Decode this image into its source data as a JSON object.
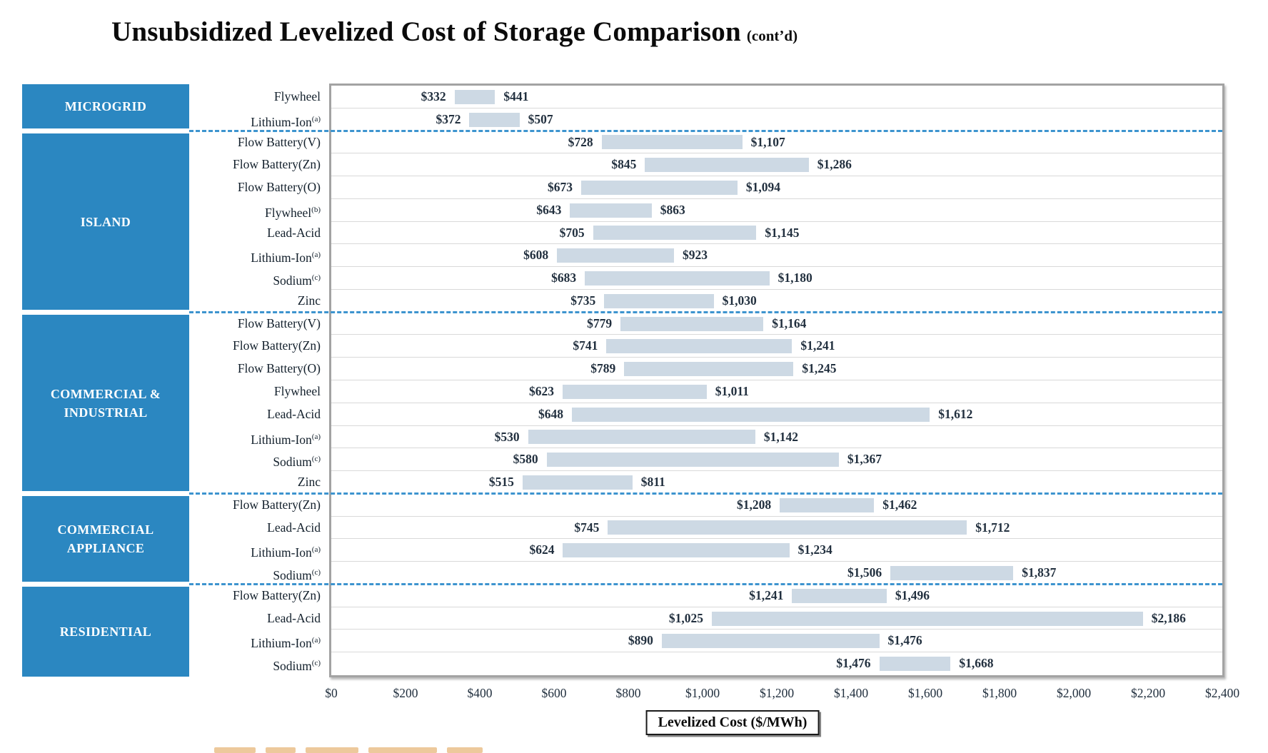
{
  "title": {
    "main": "Unsubsidized Levelized Cost of Storage Comparison",
    "suffix": "(cont’d)"
  },
  "axis": {
    "label": "Levelized Cost ($/MWh)",
    "ticks": [
      "$0",
      "$200",
      "$400",
      "$600",
      "$800",
      "$1,000",
      "$1,200",
      "$1,400",
      "$1,600",
      "$1,800",
      "$2,000",
      "$2,200",
      "$2,400"
    ],
    "min": 0,
    "max": 2400
  },
  "colors": {
    "sidebar_blue": "#2b87c1",
    "bar_fill": "#cdd9e4",
    "separator_dash": "#3d94cf",
    "row_line": "#d9d9d9",
    "plot_border": "#a3a3a3",
    "value_text": "#22303f"
  },
  "chart_data": {
    "type": "bar",
    "subtype": "horizontal-range",
    "title": "Unsubsidized Levelized Cost of Storage Comparison (cont’d)",
    "xlabel": "Levelized Cost ($/MWh)",
    "xlim": [
      0,
      2400
    ],
    "x_tick_step": 200,
    "grid": false,
    "legend": "none",
    "groups": [
      {
        "name": "MICROGRID",
        "rows": [
          {
            "label": "Flywheel",
            "sup": "",
            "low": 332,
            "high": 441,
            "low_label": "$332",
            "high_label": "$441"
          },
          {
            "label": "Lithium-Ion",
            "sup": "(a)",
            "low": 372,
            "high": 507,
            "low_label": "$372",
            "high_label": "$507"
          }
        ]
      },
      {
        "name": "ISLAND",
        "rows": [
          {
            "label": "Flow Battery(V)",
            "sup": "",
            "low": 728,
            "high": 1107,
            "low_label": "$728",
            "high_label": "$1,107"
          },
          {
            "label": "Flow Battery(Zn)",
            "sup": "",
            "low": 845,
            "high": 1286,
            "low_label": "$845",
            "high_label": "$1,286"
          },
          {
            "label": "Flow Battery(O)",
            "sup": "",
            "low": 673,
            "high": 1094,
            "low_label": "$673",
            "high_label": "$1,094"
          },
          {
            "label": "Flywheel",
            "sup": "(b)",
            "low": 643,
            "high": 863,
            "low_label": "$643",
            "high_label": "$863"
          },
          {
            "label": "Lead-Acid",
            "sup": "",
            "low": 705,
            "high": 1145,
            "low_label": "$705",
            "high_label": "$1,145"
          },
          {
            "label": "Lithium-Ion",
            "sup": "(a)",
            "low": 608,
            "high": 923,
            "low_label": "$608",
            "high_label": "$923"
          },
          {
            "label": "Sodium",
            "sup": "(c)",
            "low": 683,
            "high": 1180,
            "low_label": "$683",
            "high_label": "$1,180"
          },
          {
            "label": "Zinc",
            "sup": "",
            "low": 735,
            "high": 1030,
            "low_label": "$735",
            "high_label": "$1,030"
          }
        ]
      },
      {
        "name": "COMMERCIAL & INDUSTRIAL",
        "rows": [
          {
            "label": "Flow Battery(V)",
            "sup": "",
            "low": 779,
            "high": 1164,
            "low_label": "$779",
            "high_label": "$1,164"
          },
          {
            "label": "Flow Battery(Zn)",
            "sup": "",
            "low": 741,
            "high": 1241,
            "low_label": "$741",
            "high_label": "$1,241"
          },
          {
            "label": "Flow Battery(O)",
            "sup": "",
            "low": 789,
            "high": 1245,
            "low_label": "$789",
            "high_label": "$1,245"
          },
          {
            "label": "Flywheel",
            "sup": "",
            "low": 623,
            "high": 1011,
            "low_label": "$623",
            "high_label": "$1,011"
          },
          {
            "label": "Lead-Acid",
            "sup": "",
            "low": 648,
            "high": 1612,
            "low_label": "$648",
            "high_label": "$1,612"
          },
          {
            "label": "Lithium-Ion",
            "sup": "(a)",
            "low": 530,
            "high": 1142,
            "low_label": "$530",
            "high_label": "$1,142"
          },
          {
            "label": "Sodium",
            "sup": "(c)",
            "low": 580,
            "high": 1367,
            "low_label": "$580",
            "high_label": "$1,367"
          },
          {
            "label": "Zinc",
            "sup": "",
            "low": 515,
            "high": 811,
            "low_label": "$515",
            "high_label": "$811"
          }
        ]
      },
      {
        "name": "COMMERCIAL APPLIANCE",
        "rows": [
          {
            "label": "Flow Battery(Zn)",
            "sup": "",
            "low": 1208,
            "high": 1462,
            "low_label": "$1,208",
            "high_label": "$1,462"
          },
          {
            "label": "Lead-Acid",
            "sup": "",
            "low": 745,
            "high": 1712,
            "low_label": "$745",
            "high_label": "$1,712"
          },
          {
            "label": "Lithium-Ion",
            "sup": "(a)",
            "low": 624,
            "high": 1234,
            "low_label": "$624",
            "high_label": "$1,234"
          },
          {
            "label": "Sodium",
            "sup": "(c)",
            "low": 1506,
            "high": 1837,
            "low_label": "$1,506",
            "high_label": "$1,837"
          }
        ]
      },
      {
        "name": "RESIDENTIAL",
        "rows": [
          {
            "label": "Flow Battery(Zn)",
            "sup": "",
            "low": 1241,
            "high": 1496,
            "low_label": "$1,241",
            "high_label": "$1,496"
          },
          {
            "label": "Lead-Acid",
            "sup": "",
            "low": 1025,
            "high": 2186,
            "low_label": "$1,025",
            "high_label": "$2,186"
          },
          {
            "label": "Lithium-Ion",
            "sup": "(a)",
            "low": 890,
            "high": 1476,
            "low_label": "$890",
            "high_label": "$1,476"
          },
          {
            "label": "Sodium",
            "sup": "(c)",
            "low": 1476,
            "high": 1668,
            "low_label": "$1,476",
            "high_label": "$1,668"
          }
        ]
      }
    ]
  }
}
